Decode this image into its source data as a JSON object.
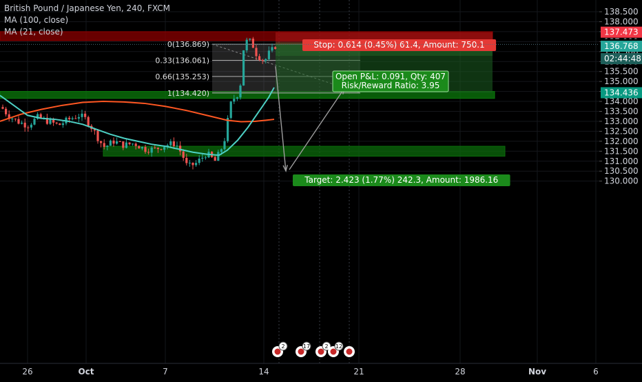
{
  "legend": {
    "symbol": "British Pound / Japanese Yen, 240, FXCM",
    "ma100": "MA (100, close)",
    "ma21": "MA (21, close)"
  },
  "price_axis": {
    "ticks": [
      "138.500",
      "138.000",
      "137.500",
      "137.000",
      "136.500",
      "136.000",
      "135.500",
      "135.000",
      "134.500",
      "134.000",
      "133.500",
      "133.000",
      "132.500",
      "132.000",
      "131.500",
      "131.000",
      "130.500",
      "130.000"
    ],
    "tick_values": [
      138.5,
      138.0,
      137.5,
      137.0,
      136.5,
      136.0,
      135.5,
      135.0,
      134.5,
      134.0,
      133.5,
      133.0,
      132.5,
      132.0,
      131.5,
      131.0,
      130.5,
      130.0
    ],
    "range": [
      129.85,
      138.65
    ]
  },
  "price_badges": {
    "stop": {
      "label": "137.473",
      "value": 137.473,
      "color": "#f23645"
    },
    "last": {
      "label": "136.859",
      "value": 136.859
    },
    "current": {
      "label": "136.768",
      "value": 136.768,
      "color": "#26a69a"
    },
    "countdown": {
      "label": "02:44:48"
    },
    "target": {
      "label": "134.436",
      "value": 134.436,
      "color": "#089981"
    }
  },
  "time_axis": {
    "labels": [
      "26",
      "Oct",
      "7",
      "14",
      "21",
      "28",
      "Nov",
      "6"
    ]
  },
  "fib": {
    "levels": [
      {
        "label": "0(136.869)",
        "value": 136.869
      },
      {
        "label": "0.33(136.061)",
        "value": 136.061
      },
      {
        "label": "0.66(135.253)",
        "value": 135.253
      },
      {
        "label": "1(134.420)",
        "value": 134.42
      }
    ]
  },
  "position": {
    "stop_label": "Stop: 0.614 (0.45%) 61.4, Amount: 750.1",
    "pnl_label": "Open P&L: 0.091, Qty: 407",
    "rr_label": "Risk/Reward Ratio: 3.95",
    "target_label": "Target: 2.423 (1.77%) 242.3, Amount: 1986.16",
    "entry": 136.859,
    "stop": 137.473,
    "target": 134.436
  },
  "zones": [
    {
      "name": "resistance",
      "top": 137.5,
      "bottom": 137.05,
      "color": "#8b0000"
    },
    {
      "name": "support-upper",
      "top": 134.5,
      "bottom": 134.15,
      "color": "#0b7a0b"
    },
    {
      "name": "support-lower",
      "top": 131.75,
      "bottom": 131.25,
      "color": "#0b6b0b"
    }
  ],
  "events": {
    "badges": [
      "2",
      "17",
      "2",
      "12"
    ]
  },
  "colors": {
    "up": "#26a69a",
    "down": "#ef5350",
    "ma100": "#ff5722",
    "ma21": "#4dd0c4",
    "grid": "#2a2e39",
    "text": "#d1d4dc"
  }
}
